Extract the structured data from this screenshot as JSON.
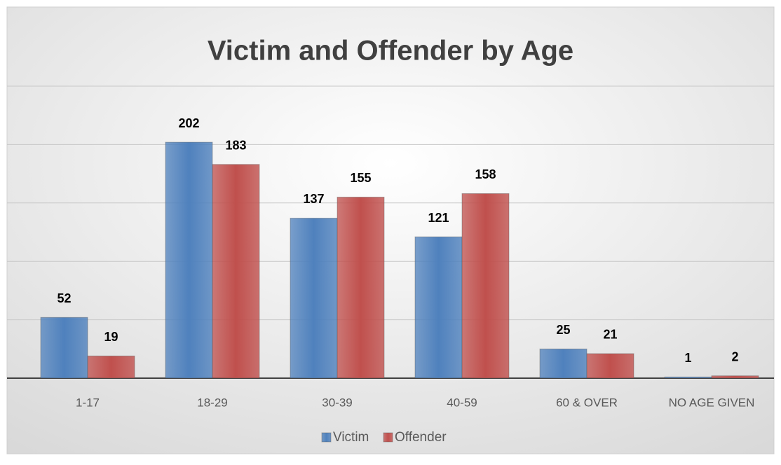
{
  "chart_data": {
    "type": "bar",
    "title": "Victim and Offender by Age",
    "categories": [
      "1-17",
      "18-29",
      "30-39",
      "40-59",
      "60 & OVER",
      "NO AGE GIVEN"
    ],
    "series": [
      {
        "name": "Victim",
        "color": "#4f81bd",
        "values": [
          52,
          202,
          137,
          121,
          25,
          1
        ]
      },
      {
        "name": "Offender",
        "color": "#c0504d",
        "values": [
          19,
          183,
          155,
          158,
          21,
          2
        ]
      }
    ],
    "ylim": [
      0,
      250
    ],
    "yticks": [
      0,
      50,
      100,
      150,
      200,
      250
    ],
    "grid": true,
    "legend": "bottom"
  }
}
